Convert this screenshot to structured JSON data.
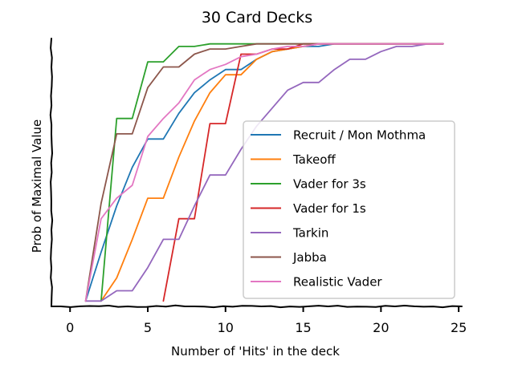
{
  "chart_data": {
    "type": "line",
    "title": "30 Card Decks",
    "xlabel": "Number of 'Hits' in the deck",
    "ylabel": "Prob of Maximal Value",
    "xlim": [
      -1.2,
      25.2
    ],
    "ylim": [
      0,
      1
    ],
    "xticks": [
      0,
      5,
      10,
      15,
      20,
      25
    ],
    "grid": false,
    "legend_position": "center-right",
    "series": [
      {
        "name": "Recruit / Mon Mothma",
        "color": "#1f77b4",
        "x": [
          1,
          2,
          3,
          4,
          5,
          6,
          7,
          8,
          9,
          10,
          11,
          12,
          13,
          14,
          15,
          16,
          17,
          18,
          19,
          20,
          21,
          22,
          23,
          24
        ],
        "y": [
          0,
          0.19,
          0.37,
          0.52,
          0.63,
          0.63,
          0.73,
          0.81,
          0.86,
          0.9,
          0.9,
          0.94,
          0.97,
          0.98,
          0.99,
          0.99,
          1,
          1,
          1,
          1,
          1,
          1,
          1,
          1
        ]
      },
      {
        "name": "Takeoff",
        "color": "#ff7f0e",
        "x": [
          2,
          3,
          4,
          5,
          6,
          7,
          8,
          9,
          10,
          11,
          12,
          13,
          14,
          15,
          16,
          17,
          18,
          19,
          20,
          21,
          22,
          23,
          24
        ],
        "y": [
          0,
          0.09,
          0.24,
          0.4,
          0.4,
          0.56,
          0.7,
          0.81,
          0.88,
          0.88,
          0.94,
          0.97,
          0.98,
          0.99,
          1,
          1,
          1,
          1,
          1,
          1,
          1,
          1,
          1
        ]
      },
      {
        "name": "Vader for 3s",
        "color": "#2ca02c",
        "x": [
          2,
          3,
          4,
          5,
          6,
          7,
          8,
          9,
          10,
          11,
          12,
          13,
          14,
          15,
          16,
          17,
          18,
          19,
          20,
          21,
          22,
          23,
          24
        ],
        "y": [
          0,
          0.71,
          0.71,
          0.93,
          0.93,
          0.99,
          0.99,
          1,
          1,
          1,
          1,
          1,
          1,
          1,
          1,
          1,
          1,
          1,
          1,
          1,
          1,
          1,
          1
        ]
      },
      {
        "name": "Vader for 1s",
        "color": "#d62728",
        "x": [
          6,
          7,
          8,
          9,
          10,
          11,
          12,
          13,
          14,
          15,
          16,
          17,
          18,
          19,
          20,
          21,
          22,
          23,
          24
        ],
        "y": [
          0,
          0.32,
          0.32,
          0.69,
          0.69,
          0.96,
          0.96,
          0.98,
          0.98,
          1,
          1,
          1,
          1,
          1,
          1,
          1,
          1,
          1,
          1
        ]
      },
      {
        "name": "Tarkin",
        "color": "#9467bd",
        "x": [
          1,
          2,
          3,
          4,
          5,
          6,
          7,
          8,
          9,
          10,
          11,
          12,
          13,
          14,
          15,
          16,
          17,
          18,
          19,
          20,
          21,
          22,
          23,
          24
        ],
        "y": [
          0,
          0,
          0.04,
          0.04,
          0.13,
          0.24,
          0.24,
          0.37,
          0.49,
          0.49,
          0.59,
          0.68,
          0.75,
          0.82,
          0.85,
          0.85,
          0.9,
          0.94,
          0.94,
          0.97,
          0.99,
          0.99,
          1,
          1
        ]
      },
      {
        "name": "Jabba",
        "color": "#8c564b",
        "x": [
          1,
          2,
          3,
          4,
          5,
          6,
          7,
          8,
          9,
          10,
          11,
          12,
          13,
          14,
          15,
          16,
          17,
          18,
          19,
          20,
          21,
          22,
          23,
          24
        ],
        "y": [
          0,
          0.38,
          0.65,
          0.65,
          0.83,
          0.91,
          0.91,
          0.96,
          0.98,
          0.98,
          0.99,
          1,
          1,
          1,
          1,
          1,
          1,
          1,
          1,
          1,
          1,
          1,
          1,
          1
        ]
      },
      {
        "name": "Realistic Vader",
        "color": "#e377c2",
        "x": [
          1,
          2,
          3,
          4,
          5,
          6,
          7,
          8,
          9,
          10,
          11,
          12,
          13,
          14,
          15,
          16,
          17,
          18,
          19,
          20,
          21,
          22,
          23,
          24
        ],
        "y": [
          0,
          0.32,
          0.4,
          0.45,
          0.64,
          0.71,
          0.77,
          0.86,
          0.9,
          0.92,
          0.95,
          0.96,
          0.98,
          0.99,
          0.99,
          1,
          1,
          1,
          1,
          1,
          1,
          1,
          1,
          1
        ]
      }
    ]
  }
}
